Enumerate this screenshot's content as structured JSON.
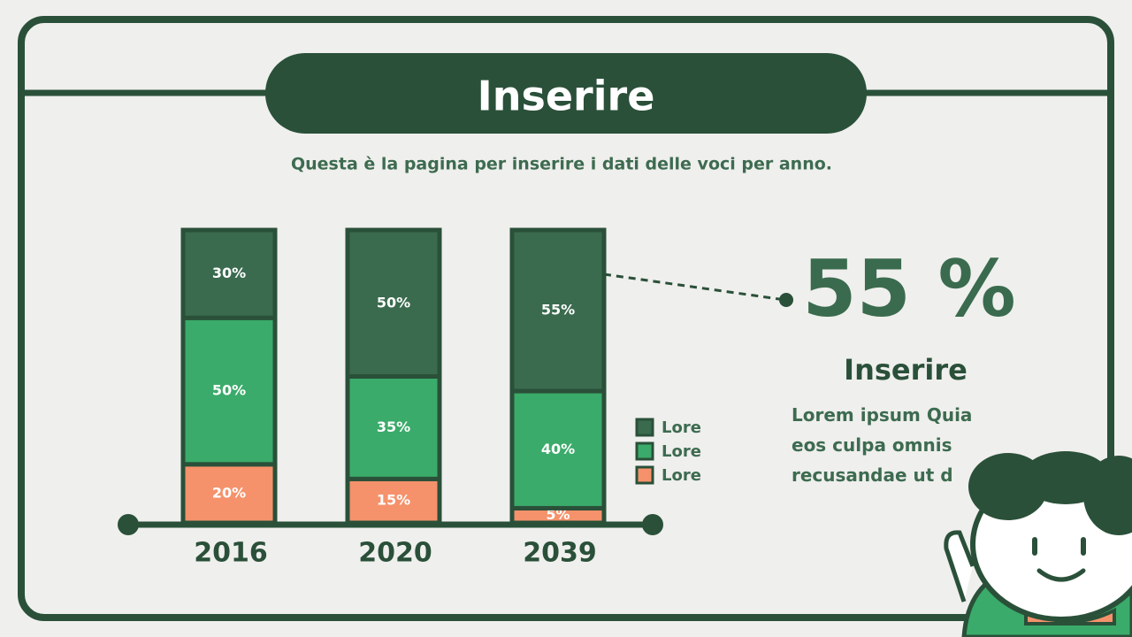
{
  "chart_data": {
    "type": "stacked_bar",
    "title": "Inserire",
    "subtitle": "Questa è la pagina per inserire i dati delle voci per anno.",
    "categories": [
      "2016",
      "2020",
      "2039"
    ],
    "series": [
      {
        "name": "Lore",
        "color": "#f5926b",
        "values": [
          20,
          15,
          5
        ],
        "value_labels": [
          "20%",
          "15%",
          "5%"
        ]
      },
      {
        "name": "Lore",
        "color": "#3aab6a",
        "values": [
          50,
          35,
          40
        ],
        "value_labels": [
          "50%",
          "35%",
          "40%"
        ]
      },
      {
        "name": "Lore",
        "color": "#3a6b4e",
        "values": [
          30,
          50,
          55
        ],
        "value_labels": [
          "30%",
          "50%",
          "55%"
        ]
      }
    ],
    "highlight_value": "55 %",
    "highlight_title": "Inserire",
    "highlight_text": "Lorem ipsum Quia eos culpa omnis recusandae ut d"
  }
}
